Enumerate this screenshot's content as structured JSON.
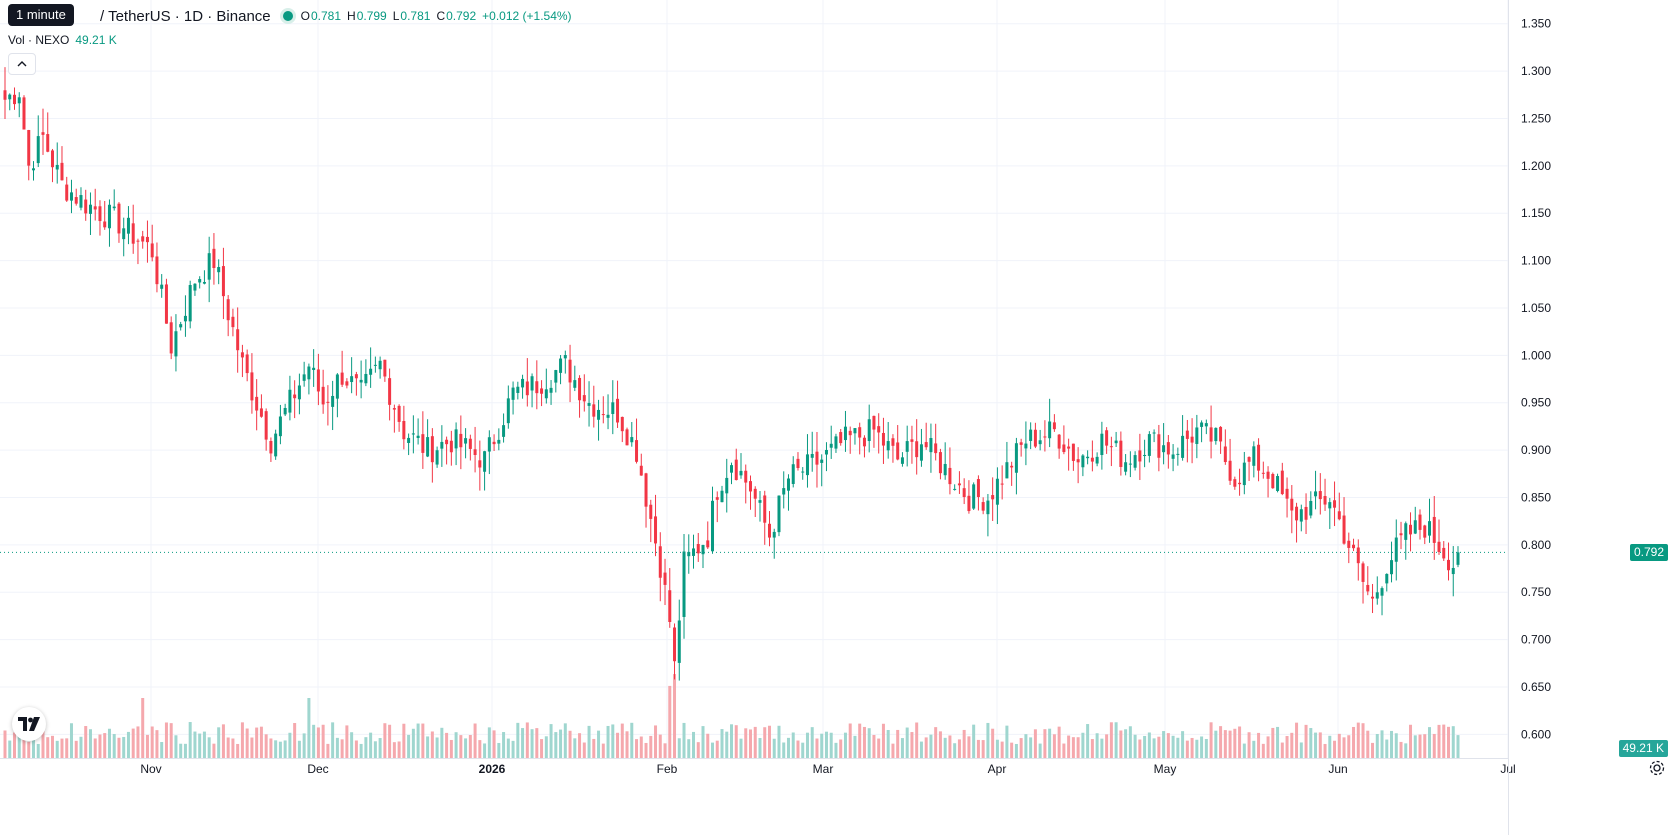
{
  "legend": {
    "tooltip": "1 minute",
    "symbol": "/ TetherUS · 1D · Binance",
    "open_label": "O",
    "open": "0.781",
    "high_label": "H",
    "high": "0.799",
    "low_label": "L",
    "low": "0.781",
    "close_label": "C",
    "close": "0.792",
    "change": "+0.012 (+1.54%)"
  },
  "volume_legend": {
    "label": "Vol · NEXO",
    "value": "49.21 K"
  },
  "last_price_tag": "0.792",
  "volume_tag": "49.21 K",
  "colors": {
    "up": "#089981",
    "down": "#f23645",
    "up_vol": "#9fd6cf",
    "down_vol": "#f5a8ad",
    "grid": "#f0f3fa"
  },
  "chart_data": {
    "type": "candlestick",
    "interval": "1D",
    "y_axis": {
      "range": [
        0.575,
        1.375
      ],
      "ticks": [
        "1.350",
        "1.300",
        "1.250",
        "1.200",
        "1.150",
        "1.100",
        "1.050",
        "1.000",
        "0.950",
        "0.900",
        "0.850",
        "0.800",
        "0.750",
        "0.700",
        "0.650",
        "0.600"
      ]
    },
    "x_axis": {
      "ticks": [
        "Nov",
        "Dec",
        "2026",
        "Feb",
        "Mar",
        "Apr",
        "May",
        "Jun",
        "Jul"
      ]
    },
    "close_anchors": [
      [
        0,
        1.27
      ],
      [
        3,
        1.28
      ],
      [
        5,
        1.2
      ],
      [
        8,
        1.23
      ],
      [
        12,
        1.18
      ],
      [
        17,
        1.16
      ],
      [
        24,
        1.14
      ],
      [
        31,
        1.11
      ],
      [
        35,
        1.01
      ],
      [
        40,
        1.08
      ],
      [
        44,
        1.1
      ],
      [
        50,
        0.99
      ],
      [
        56,
        0.91
      ],
      [
        61,
        0.96
      ],
      [
        64,
        0.99
      ],
      [
        67,
        0.95
      ],
      [
        71,
        0.98
      ],
      [
        75,
        0.96
      ],
      [
        79,
        0.99
      ],
      [
        84,
        0.92
      ],
      [
        89,
        0.9
      ],
      [
        94,
        0.91
      ],
      [
        101,
        0.89
      ],
      [
        107,
        0.96
      ],
      [
        112,
        0.97
      ],
      [
        118,
        0.99
      ],
      [
        123,
        0.95
      ],
      [
        129,
        0.94
      ],
      [
        133,
        0.9
      ],
      [
        138,
        0.78
      ],
      [
        140,
        0.72
      ],
      [
        141,
        0.67
      ],
      [
        143,
        0.78
      ],
      [
        148,
        0.81
      ],
      [
        150,
        0.86
      ],
      [
        153,
        0.89
      ],
      [
        157,
        0.86
      ],
      [
        161,
        0.81
      ],
      [
        165,
        0.87
      ],
      [
        172,
        0.89
      ],
      [
        177,
        0.91
      ],
      [
        183,
        0.92
      ],
      [
        188,
        0.89
      ],
      [
        193,
        0.91
      ],
      [
        198,
        0.88
      ],
      [
        203,
        0.85
      ],
      [
        207,
        0.85
      ],
      [
        211,
        0.88
      ],
      [
        215,
        0.91
      ],
      [
        221,
        0.92
      ],
      [
        226,
        0.89
      ],
      [
        231,
        0.91
      ],
      [
        236,
        0.89
      ],
      [
        241,
        0.91
      ],
      [
        246,
        0.9
      ],
      [
        251,
        0.92
      ],
      [
        255,
        0.91
      ],
      [
        259,
        0.87
      ],
      [
        263,
        0.89
      ],
      [
        267,
        0.87
      ],
      [
        271,
        0.83
      ],
      [
        275,
        0.84
      ],
      [
        279,
        0.85
      ],
      [
        283,
        0.8
      ],
      [
        286,
        0.76
      ],
      [
        288,
        0.74
      ],
      [
        291,
        0.78
      ],
      [
        295,
        0.81
      ],
      [
        299,
        0.82
      ],
      [
        302,
        0.8
      ],
      [
        305,
        0.78
      ],
      [
        306,
        0.79
      ]
    ],
    "volume_range": [
      0,
      100000
    ],
    "last_price": 0.792,
    "last_volume": "49.21 K"
  }
}
